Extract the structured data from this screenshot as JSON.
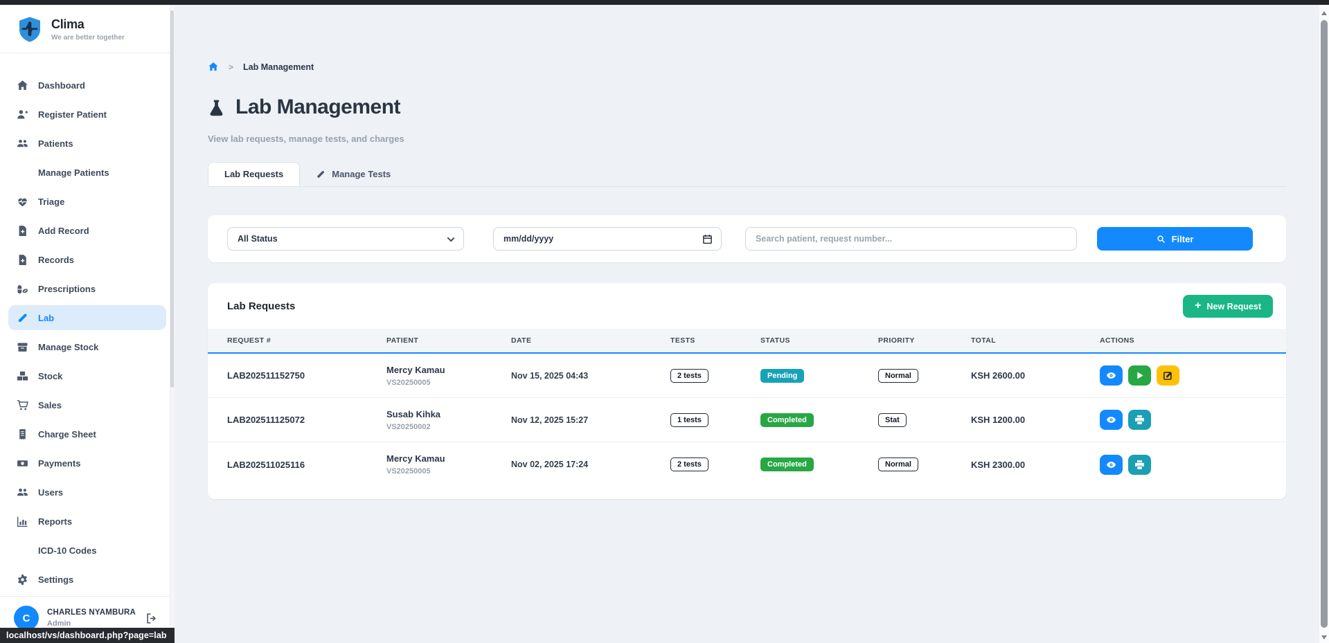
{
  "app": {
    "name": "Clima",
    "tagline": "We are better together"
  },
  "sidebar": {
    "items": [
      {
        "label": "Dashboard",
        "icon": "home"
      },
      {
        "label": "Register Patient",
        "icon": "user-plus"
      },
      {
        "label": "Patients",
        "icon": "users"
      },
      {
        "label": "Manage Patients",
        "icon": ""
      },
      {
        "label": "Triage",
        "icon": "heart-pulse"
      },
      {
        "label": "Add Record",
        "icon": "file-plus"
      },
      {
        "label": "Records",
        "icon": "file-plus"
      },
      {
        "label": "Prescriptions",
        "icon": "pills"
      },
      {
        "label": "Lab",
        "icon": "vial",
        "active": true
      },
      {
        "label": "Manage Stock",
        "icon": "box"
      },
      {
        "label": "Stock",
        "icon": "boxes-stacked"
      },
      {
        "label": "Sales",
        "icon": "cart"
      },
      {
        "label": "Charge Sheet",
        "icon": "receipt"
      },
      {
        "label": "Payments",
        "icon": "money"
      },
      {
        "label": "Users",
        "icon": "users"
      },
      {
        "label": "Reports",
        "icon": "chart-bars"
      },
      {
        "label": "ICD-10 Codes",
        "icon": ""
      },
      {
        "label": "Settings",
        "icon": "gear"
      }
    ],
    "user": {
      "initial": "C",
      "name": "CHARLES NYAMBURA",
      "role": "Admin"
    }
  },
  "breadcrumb": {
    "current": "Lab Management"
  },
  "header": {
    "title": "Lab Management",
    "subtitle": "View lab requests, manage tests, and charges"
  },
  "tabs": [
    {
      "label": "Lab Requests",
      "active": true
    },
    {
      "label": "Manage Tests",
      "active": false
    }
  ],
  "filters": {
    "status_value": "All Status",
    "date_placeholder": "mm/dd/yyyy",
    "search_placeholder": "Search patient, request number...",
    "button_label": "Filter"
  },
  "panel": {
    "title": "Lab Requests",
    "new_request_label": "New Request"
  },
  "table": {
    "columns": [
      "REQUEST #",
      "PATIENT",
      "DATE",
      "TESTS",
      "STATUS",
      "PRIORITY",
      "TOTAL",
      "ACTIONS"
    ],
    "rows": [
      {
        "request": "LAB202511152750",
        "patient": "Mercy Kamau",
        "patient_id": "VS20250005",
        "date": "Nov 15, 2025 04:43",
        "tests": "2 tests",
        "status": "Pending",
        "status_color": "#17a2b8",
        "priority": "Normal",
        "total": "KSH 2600.00",
        "actions": [
          "view",
          "start",
          "edit"
        ]
      },
      {
        "request": "LAB202511125072",
        "patient": "Susab Kihka",
        "patient_id": "VS20250002",
        "date": "Nov 12, 2025 15:27",
        "tests": "1 tests",
        "status": "Completed",
        "status_color": "#28a745",
        "priority": "Stat",
        "total": "KSH 1200.00",
        "actions": [
          "view",
          "print"
        ]
      },
      {
        "request": "LAB202511025116",
        "patient": "Mercy Kamau",
        "patient_id": "VS20250005",
        "date": "Nov 02, 2025 17:24",
        "tests": "2 tests",
        "status": "Completed",
        "status_color": "#28a745",
        "priority": "Normal",
        "total": "KSH 2300.00",
        "actions": [
          "view",
          "print"
        ]
      }
    ]
  },
  "statusbar": {
    "url": "localhost/vs/dashboard.php?page=lab"
  },
  "colors": {
    "accent_blue": "#1389fd",
    "success_green": "#28a745",
    "info_teal": "#17a2b8",
    "warning_yellow": "#ffc107",
    "new_request_green": "#1ab685",
    "active_item_bg": "#dcecfd"
  }
}
